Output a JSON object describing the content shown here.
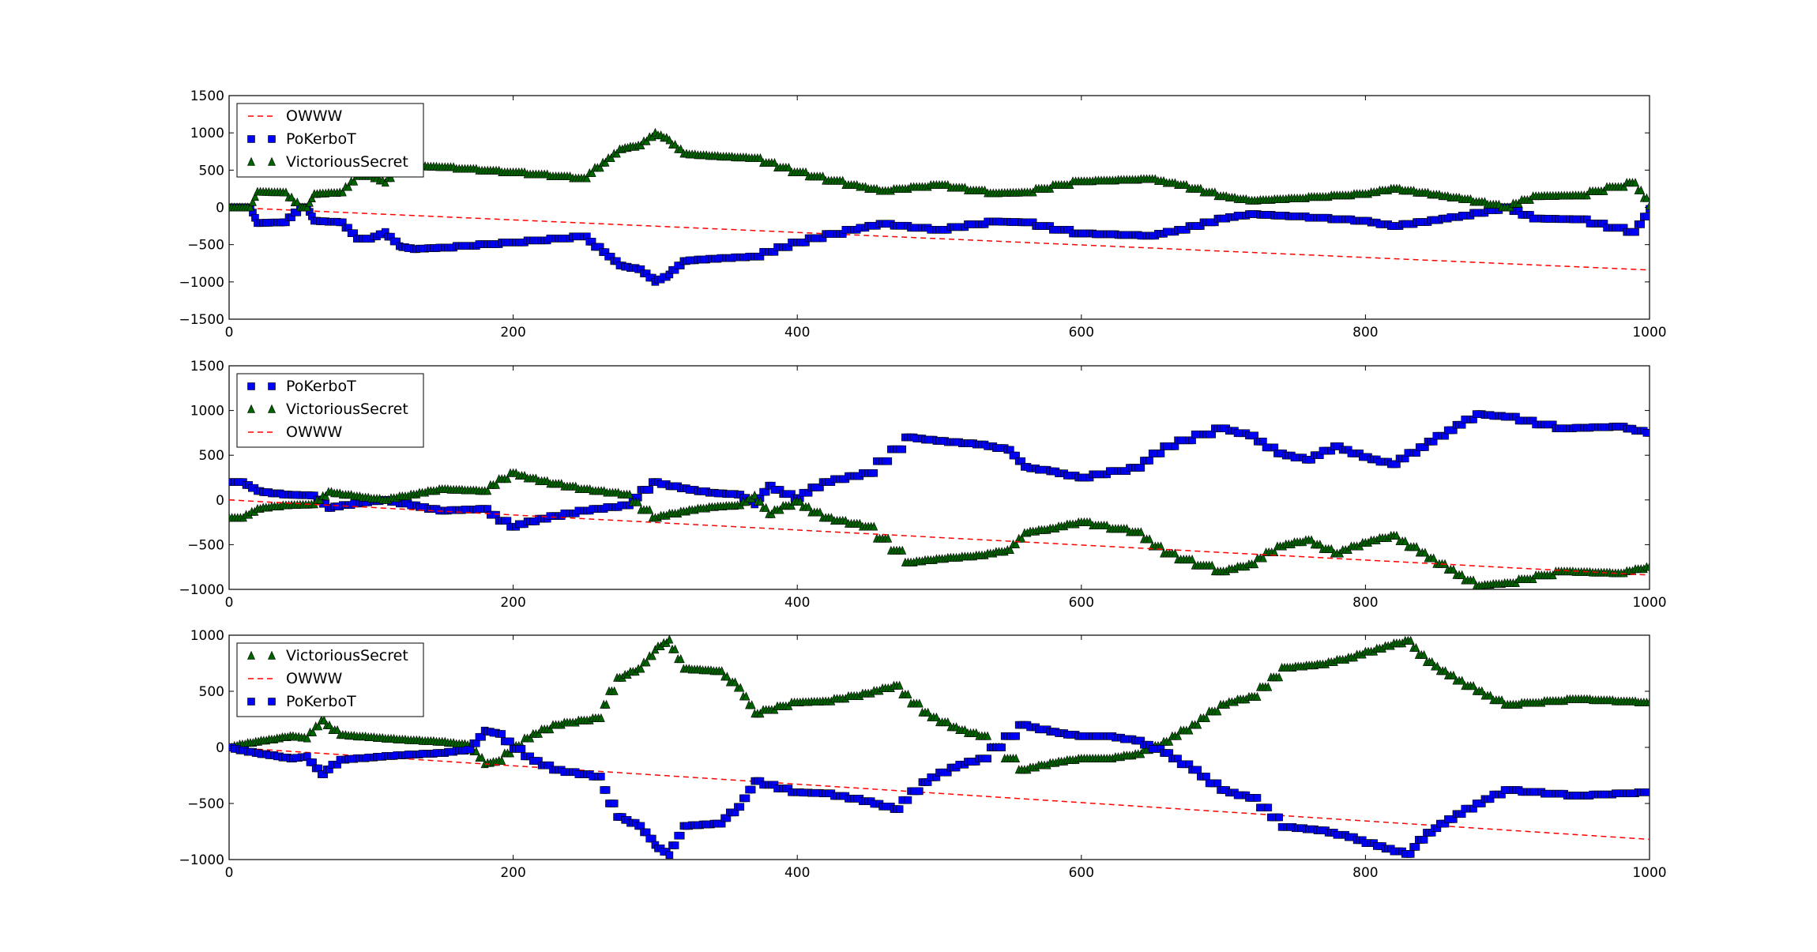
{
  "colors": {
    "OWWW": "#ff0000",
    "PoKerboT": "#0000ff",
    "VictoriousSecret": "#006400"
  },
  "chart_data": [
    {
      "type": "line",
      "xlim": [
        0,
        1000
      ],
      "ylim": [
        -1500,
        1500
      ],
      "xticks": [
        0,
        200,
        400,
        600,
        800,
        1000
      ],
      "yticks": [
        -1500,
        -1000,
        -500,
        0,
        500,
        1000,
        1500
      ],
      "legend_position": "top-left",
      "legend_order": [
        "OWWW",
        "PoKerboT",
        "VictoriousSecret"
      ],
      "series": [
        {
          "name": "OWWW",
          "style": "dashed-line",
          "x": [
            0,
            1000
          ],
          "y": [
            0,
            -840
          ]
        },
        {
          "name": "PoKerboT",
          "style": "square-markers",
          "x": [
            0,
            15,
            20,
            40,
            50,
            55,
            60,
            80,
            90,
            100,
            110,
            120,
            130,
            150,
            200,
            250,
            265,
            275,
            290,
            300,
            310,
            320,
            340,
            370,
            400,
            440,
            460,
            500,
            540,
            560,
            600,
            650,
            670,
            700,
            720,
            750,
            800,
            820,
            850,
            870,
            900,
            920,
            950,
            990,
            1000
          ],
          "y": [
            0,
            0,
            -210,
            -200,
            0,
            0,
            -180,
            -200,
            -420,
            -420,
            -330,
            -520,
            -560,
            -540,
            -470,
            -390,
            -600,
            -780,
            -830,
            -1000,
            -900,
            -720,
            -690,
            -660,
            -470,
            -300,
            -220,
            -300,
            -190,
            -200,
            -350,
            -380,
            -300,
            -150,
            -90,
            -120,
            -180,
            -250,
            -170,
            -110,
            0,
            -150,
            -160,
            -330,
            -20
          ]
        },
        {
          "name": "VictoriousSecret",
          "style": "triangle-markers",
          "x": [
            0,
            15,
            20,
            40,
            50,
            55,
            60,
            80,
            90,
            100,
            110,
            120,
            130,
            150,
            200,
            250,
            265,
            275,
            290,
            300,
            310,
            320,
            340,
            370,
            400,
            440,
            460,
            500,
            540,
            560,
            600,
            650,
            670,
            700,
            720,
            750,
            800,
            820,
            850,
            870,
            900,
            920,
            950,
            990,
            1000
          ],
          "y": [
            0,
            0,
            210,
            200,
            0,
            0,
            180,
            200,
            420,
            420,
            330,
            520,
            560,
            540,
            470,
            390,
            600,
            780,
            830,
            1000,
            900,
            720,
            690,
            660,
            470,
            300,
            220,
            300,
            190,
            200,
            350,
            380,
            300,
            150,
            90,
            120,
            180,
            250,
            170,
            110,
            0,
            150,
            160,
            330,
            20
          ]
        }
      ]
    },
    {
      "type": "line",
      "xlim": [
        0,
        1000
      ],
      "ylim": [
        -1000,
        1500
      ],
      "xticks": [
        0,
        200,
        400,
        600,
        800,
        1000
      ],
      "yticks": [
        -1000,
        -500,
        0,
        500,
        1000,
        1500
      ],
      "legend_position": "top-left",
      "legend_order": [
        "PoKerboT",
        "VictoriousSecret",
        "OWWW"
      ],
      "series": [
        {
          "name": "PoKerboT",
          "style": "square-markers",
          "x": [
            0,
            10,
            20,
            40,
            60,
            70,
            90,
            110,
            130,
            150,
            180,
            200,
            220,
            250,
            280,
            300,
            320,
            340,
            360,
            370,
            380,
            400,
            420,
            450,
            480,
            500,
            530,
            550,
            560,
            580,
            600,
            640,
            660,
            700,
            720,
            740,
            760,
            780,
            800,
            820,
            840,
            860,
            880,
            900,
            940,
            980,
            1000
          ],
          "y": [
            200,
            200,
            100,
            60,
            50,
            -90,
            -40,
            0,
            -60,
            -120,
            -100,
            -300,
            -210,
            -120,
            -60,
            200,
            130,
            80,
            60,
            -50,
            160,
            20,
            200,
            300,
            700,
            660,
            620,
            560,
            370,
            320,
            250,
            360,
            600,
            800,
            720,
            520,
            450,
            600,
            480,
            400,
            590,
            780,
            960,
            930,
            800,
            820,
            750
          ]
        },
        {
          "name": "VictoriousSecret",
          "style": "triangle-markers",
          "x": [
            0,
            10,
            20,
            40,
            60,
            70,
            90,
            110,
            130,
            150,
            180,
            200,
            220,
            250,
            280,
            300,
            320,
            340,
            360,
            370,
            380,
            400,
            420,
            450,
            480,
            500,
            530,
            550,
            560,
            580,
            600,
            640,
            660,
            700,
            720,
            740,
            760,
            780,
            800,
            820,
            840,
            860,
            880,
            900,
            940,
            980,
            1000
          ],
          "y": [
            -200,
            -200,
            -100,
            -60,
            -50,
            90,
            40,
            0,
            60,
            120,
            100,
            300,
            210,
            120,
            60,
            -200,
            -130,
            -80,
            -60,
            50,
            -160,
            -20,
            -200,
            -300,
            -700,
            -660,
            -620,
            -560,
            -370,
            -320,
            -250,
            -360,
            -600,
            -800,
            -720,
            -520,
            -450,
            -600,
            -480,
            -400,
            -590,
            -780,
            -960,
            -930,
            -800,
            -820,
            -750
          ]
        },
        {
          "name": "OWWW",
          "style": "dashed-line",
          "x": [
            0,
            1000
          ],
          "y": [
            0,
            -840
          ]
        }
      ]
    },
    {
      "type": "line",
      "xlim": [
        0,
        1000
      ],
      "ylim": [
        -1000,
        1000
      ],
      "xticks": [
        0,
        200,
        400,
        600,
        800,
        1000
      ],
      "yticks": [
        -1000,
        -500,
        0,
        500,
        1000
      ],
      "legend_position": "top-left",
      "legend_order": [
        "VictoriousSecret",
        "OWWW",
        "PoKerboT"
      ],
      "series": [
        {
          "name": "VictoriousSecret",
          "style": "triangle-markers",
          "x": [
            0,
            15,
            30,
            45,
            55,
            65,
            80,
            100,
            120,
            150,
            170,
            180,
            190,
            210,
            230,
            260,
            275,
            290,
            300,
            310,
            320,
            345,
            360,
            370,
            400,
            420,
            450,
            470,
            490,
            510,
            530,
            560,
            580,
            600,
            620,
            640,
            660,
            680,
            700,
            720,
            745,
            770,
            790,
            810,
            830,
            845,
            860,
            880,
            900,
            950,
            1000
          ],
          "y": [
            0,
            40,
            70,
            100,
            80,
            240,
            110,
            90,
            70,
            50,
            20,
            -150,
            -120,
            80,
            200,
            260,
            620,
            700,
            870,
            960,
            700,
            680,
            530,
            300,
            400,
            410,
            480,
            550,
            310,
            180,
            100,
            -200,
            -140,
            -100,
            -100,
            -60,
            50,
            200,
            380,
            450,
            710,
            740,
            800,
            880,
            950,
            760,
            640,
            500,
            380,
            430,
            400
          ]
        },
        {
          "name": "OWWW",
          "style": "dashed-line",
          "x": [
            0,
            1000
          ],
          "y": [
            0,
            -820
          ]
        },
        {
          "name": "PoKerboT",
          "style": "square-markers",
          "x": [
            0,
            15,
            30,
            45,
            55,
            65,
            80,
            100,
            120,
            150,
            170,
            180,
            190,
            210,
            230,
            260,
            275,
            290,
            300,
            310,
            320,
            345,
            360,
            370,
            400,
            420,
            450,
            470,
            490,
            510,
            530,
            560,
            580,
            600,
            620,
            640,
            660,
            680,
            700,
            720,
            745,
            770,
            790,
            810,
            830,
            845,
            860,
            880,
            900,
            950,
            1000
          ],
          "y": [
            0,
            -40,
            -70,
            -100,
            -80,
            -240,
            -110,
            -90,
            -70,
            -50,
            -20,
            150,
            120,
            -80,
            -200,
            -260,
            -620,
            -700,
            -870,
            -960,
            -700,
            -680,
            -530,
            -300,
            -400,
            -410,
            -480,
            -550,
            -310,
            -180,
            -100,
            200,
            140,
            100,
            100,
            60,
            -50,
            -200,
            -380,
            -450,
            -710,
            -740,
            -800,
            -880,
            -950,
            -760,
            -640,
            -500,
            -380,
            -430,
            -400
          ]
        }
      ]
    }
  ]
}
